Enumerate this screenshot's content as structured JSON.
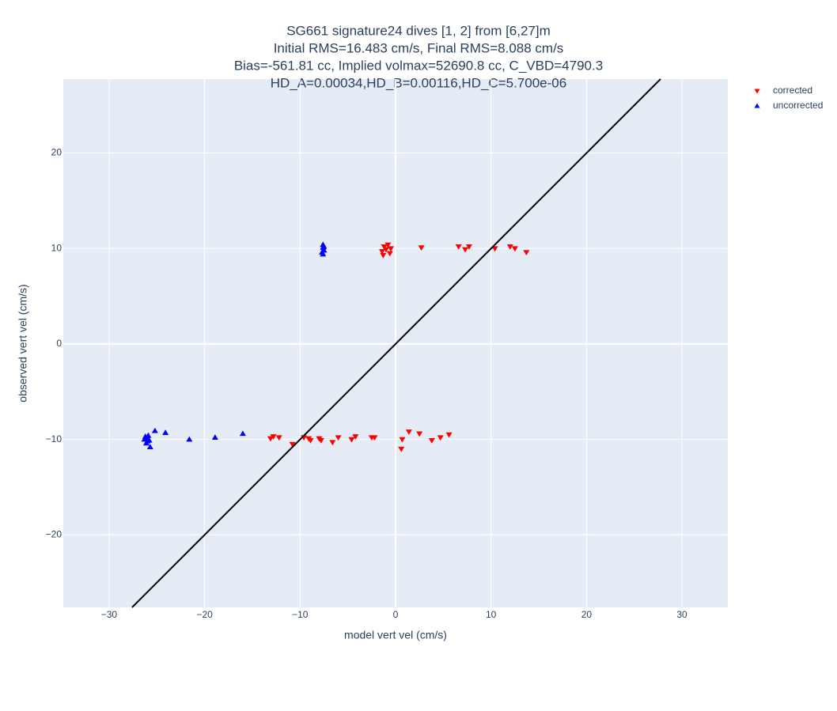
{
  "chart_data": {
    "type": "scatter",
    "title": [
      "SG661 signature24 dives [1, 2] from [6,27]m",
      "Initial RMS=16.483 cm/s, Final RMS=8.088 cm/s",
      "Bias=-561.81 cc, Implied volmax=52690.8 cc, C_VBD=4790.3",
      "HD_A=0.00034,HD_B=0.00116,HD_C=5.700e-06"
    ],
    "x_label": "model vert vel (cm/s)",
    "y_label": "observed vert vel (cm/s)",
    "xlim": [
      -34.8,
      34.8
    ],
    "ylim": [
      -27.6,
      27.75
    ],
    "xticks": [
      {
        "value": -30,
        "label": "−30"
      },
      {
        "value": -20,
        "label": "−20"
      },
      {
        "value": -10,
        "label": "−10"
      },
      0,
      10,
      20,
      30
    ],
    "yticks": [
      {
        "value": -20,
        "label": "−20"
      },
      {
        "value": -10,
        "label": "−10"
      },
      0,
      10,
      20
    ],
    "grid": true,
    "legend": "outside-top-right",
    "series": [
      {
        "name": "corrected",
        "color": "#ff0000",
        "marker": "triangle-down",
        "x": [
          -1.2,
          -0.8,
          -1.3,
          -0.6,
          -1.0,
          -0.5,
          -1.4,
          2.7,
          6.6,
          7.3,
          7.7,
          10.4,
          12.0,
          12.5,
          13.7,
          -13.1,
          -12.8,
          -12.2,
          -10.8,
          -9.6,
          -9.1,
          -8.9,
          -8.0,
          -7.8,
          -6.6,
          -6.0,
          -4.6,
          -4.2,
          -2.5,
          -2.2,
          0.6,
          0.7,
          1.4,
          2.5,
          3.8,
          4.7,
          5.6
        ],
        "values": [
          10.2,
          10.4,
          9.3,
          9.5,
          9.9,
          10.0,
          9.7,
          10.1,
          10.2,
          9.9,
          10.2,
          10.0,
          10.2,
          10.0,
          9.6,
          -9.9,
          -9.7,
          -9.8,
          -10.5,
          -9.8,
          -9.9,
          -10.1,
          -9.9,
          -10.1,
          -10.3,
          -9.8,
          -10.0,
          -9.7,
          -9.8,
          -9.8,
          -11.0,
          -10.0,
          -9.2,
          -9.4,
          -10.1,
          -9.8,
          -9.5
        ]
      },
      {
        "name": "uncorrected",
        "color": "#0000ff",
        "marker": "triangle-up",
        "x": [
          -7.6,
          -7.6,
          -7.5,
          -7.7,
          -7.6,
          -7.5,
          -26.2,
          -26.0,
          -25.8,
          -26.3,
          -26.1,
          -25.9,
          -26.0,
          -25.7,
          -25.2,
          -24.1,
          -21.6,
          -18.9,
          -16.0
        ],
        "values": [
          10.4,
          10.1,
          9.8,
          9.6,
          9.4,
          10.2,
          -9.7,
          -9.9,
          -10.1,
          -10.0,
          -10.4,
          -9.6,
          -10.2,
          -10.8,
          -9.1,
          -9.3,
          -10.0,
          -9.8,
          -9.4
        ]
      },
      {
        "color": "#000000",
        "marker": "line",
        "x": [
          -27.6,
          27.75
        ],
        "values": [
          -27.6,
          27.75
        ]
      }
    ]
  }
}
